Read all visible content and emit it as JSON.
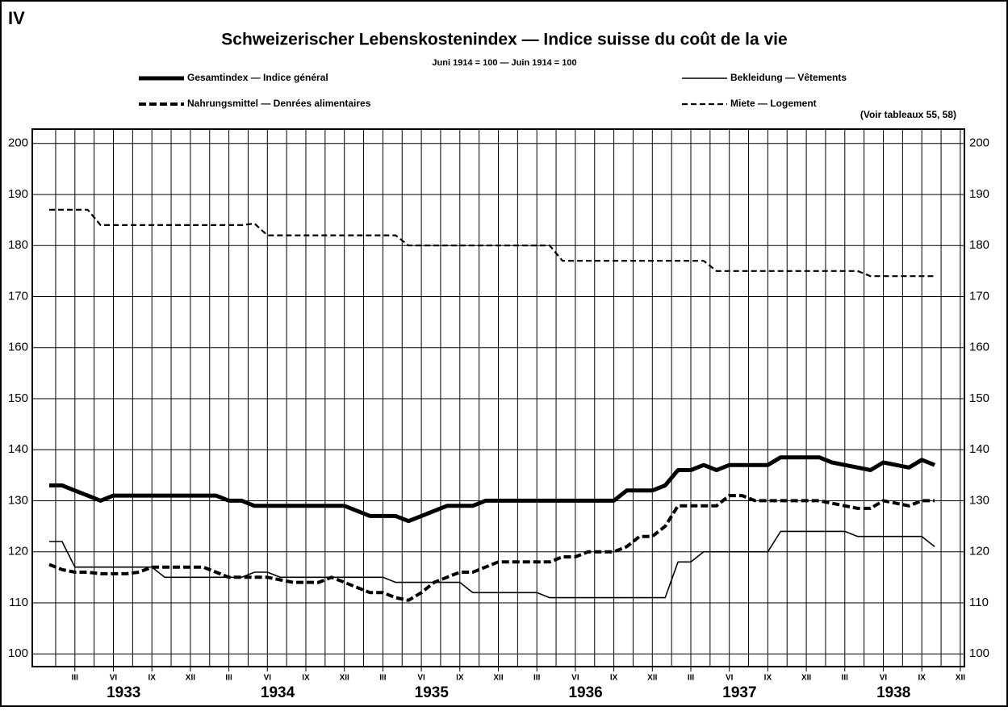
{
  "chart_data": {
    "type": "line",
    "plate": "IV",
    "title": "Schweizerischer Lebenskostenindex — Indice suisse du coût de la vie",
    "subtitle": "Juni 1914 = 100  —  Juin 1914 = 100",
    "annotation": "(Voir tableaux 55, 58)",
    "categories": [
      null,
      null,
      "III",
      null,
      null,
      "VI",
      null,
      null,
      "IX",
      null,
      null,
      "XII",
      null,
      null,
      "III",
      null,
      null,
      "VI",
      null,
      null,
      "IX",
      null,
      null,
      "XII",
      null,
      null,
      "III",
      null,
      null,
      "VI",
      null,
      null,
      "IX",
      null,
      null,
      "XII",
      null,
      null,
      "III",
      null,
      null,
      "VI",
      null,
      null,
      "IX",
      null,
      null,
      "XII",
      null,
      null,
      "III",
      null,
      null,
      "VI",
      null,
      null,
      "IX",
      null,
      null,
      "XII",
      null,
      null,
      "III",
      null,
      null,
      "VI",
      null,
      null,
      "IX",
      null,
      null,
      "XII"
    ],
    "years": [
      "1933",
      "1934",
      "1935",
      "1936",
      "1937",
      "1938"
    ],
    "ylim": [
      97.5,
      202.8
    ],
    "yticks": [
      100,
      110,
      120,
      130,
      140,
      150,
      160,
      170,
      180,
      190,
      200
    ],
    "grid": true,
    "series": [
      {
        "name": "Gesamtindex — Indice général",
        "color": "#000000",
        "width": 5,
        "dash": "none",
        "values": [
          133,
          133,
          132,
          131,
          130,
          131,
          131,
          131,
          131,
          131,
          131,
          131,
          131,
          131,
          130,
          130,
          129,
          129,
          129,
          129,
          129,
          129,
          129,
          129,
          128,
          127,
          127,
          127,
          126,
          127,
          128,
          129,
          129,
          129,
          130,
          130,
          130,
          130,
          130,
          130,
          130,
          130,
          130,
          130,
          130,
          132,
          132,
          132,
          133,
          136,
          136,
          137,
          136,
          137,
          137,
          137,
          137,
          138.5,
          138.5,
          138.5,
          138.5,
          137.5,
          137,
          136.5,
          136,
          137.5,
          137,
          136.5,
          138,
          137,
          null,
          null
        ]
      },
      {
        "name": "Nahrungsmittel — Denrées alimentaires",
        "color": "#000000",
        "width": 4,
        "dash": "9 4",
        "values": [
          117.5,
          116.5,
          116,
          116,
          115.7,
          115.7,
          115.7,
          116,
          117,
          117,
          117,
          117,
          117,
          116,
          115,
          115,
          115,
          115,
          114.5,
          114,
          114,
          114,
          115,
          114,
          113,
          112,
          112,
          111,
          110.5,
          112,
          114,
          115,
          116,
          116,
          117,
          118,
          118,
          118,
          118,
          118,
          119,
          119,
          120,
          120,
          120,
          121,
          123,
          123,
          125,
          129,
          129,
          129,
          129,
          131,
          131,
          130,
          130,
          130,
          130,
          130,
          130,
          129.5,
          129,
          128.5,
          128.5,
          130,
          129.5,
          129,
          130,
          130,
          null,
          null
        ]
      },
      {
        "name": "Bekleidung — Vêtements",
        "color": "#000000",
        "width": 1.6,
        "dash": "none",
        "values": [
          122,
          122,
          117,
          117,
          117,
          117,
          117,
          117,
          117,
          115,
          115,
          115,
          115,
          115,
          115,
          115,
          116,
          116,
          115,
          115,
          115,
          115,
          115,
          115,
          115,
          115,
          115,
          114,
          114,
          114,
          114,
          114,
          114,
          112,
          112,
          112,
          112,
          112,
          112,
          111,
          111,
          111,
          111,
          111,
          111,
          111,
          111,
          111,
          111,
          118,
          118,
          120,
          120,
          120,
          120,
          120,
          120,
          124,
          124,
          124,
          124,
          124,
          124,
          123,
          123,
          123,
          123,
          123,
          123,
          121,
          null,
          null
        ]
      },
      {
        "name": "Miete — Logement",
        "color": "#000000",
        "width": 2.2,
        "dash": "7 4",
        "values": [
          187,
          187,
          187,
          187,
          184,
          184,
          184,
          184,
          184,
          184,
          184,
          184,
          184,
          184,
          184,
          184,
          184.3,
          182,
          182,
          182,
          182,
          182,
          182,
          182,
          182,
          182,
          182,
          182,
          180,
          180,
          180,
          180,
          180,
          180,
          180,
          180,
          180,
          180,
          180,
          180,
          177,
          177,
          177,
          177,
          177,
          177,
          177,
          177,
          177,
          177,
          177,
          177,
          175,
          175,
          175,
          175,
          175,
          175,
          175,
          175,
          175,
          175,
          175,
          175,
          174,
          174,
          174,
          174,
          174,
          174,
          null,
          null
        ]
      }
    ]
  }
}
